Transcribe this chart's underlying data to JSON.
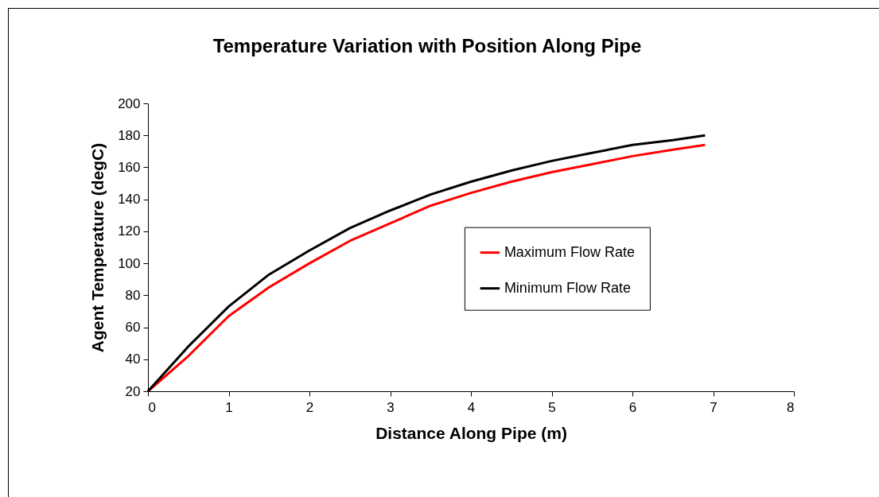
{
  "chart_data": {
    "type": "line",
    "title": "Temperature Variation with Position Along Pipe",
    "xlabel": "Distance Along Pipe (m)",
    "ylabel": "Agent Temperature (degC)",
    "x": [
      0,
      0.5,
      1,
      1.5,
      2,
      2.5,
      3,
      3.5,
      4,
      4.5,
      5,
      5.5,
      6,
      6.5,
      6.9
    ],
    "series": [
      {
        "name": "Maximum Flow Rate",
        "color": "#ff0000",
        "values": [
          20,
          42,
          67,
          85,
          100,
          114,
          125,
          136,
          144,
          151,
          157,
          162,
          167,
          171,
          174
        ]
      },
      {
        "name": "Minimum Flow Rate",
        "color": "#000000",
        "values": [
          20,
          48,
          73,
          93,
          108,
          122,
          133,
          143,
          151,
          158,
          164,
          169,
          174,
          177,
          180
        ]
      }
    ],
    "xlim": [
      0,
      8
    ],
    "xticks": [
      0,
      1,
      2,
      3,
      4,
      5,
      6,
      7,
      8
    ],
    "ylim": [
      20,
      200
    ],
    "yticks": [
      20,
      40,
      60,
      80,
      100,
      120,
      140,
      160,
      180,
      200
    ],
    "legend": "right",
    "marker": "none",
    "line_style": "solid",
    "grid": false
  }
}
